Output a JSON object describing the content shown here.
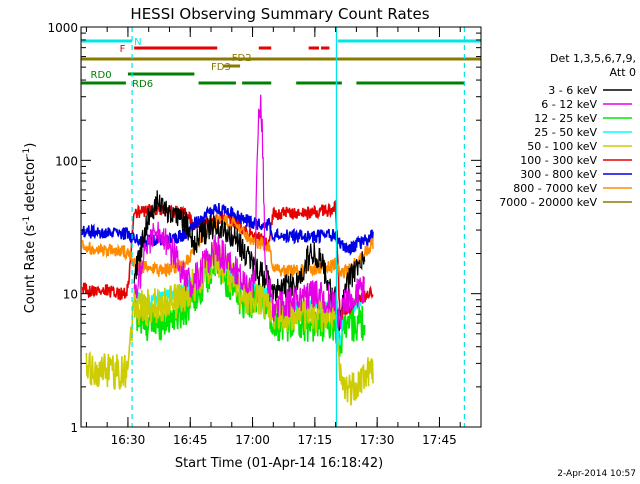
{
  "chart_data": {
    "type": "line",
    "title": "HESSI Observing Summary Count Rates",
    "xlabel": "Start Time (01-Apr-14 16:18:42)",
    "ylabel": "Count Rate (s",
    "ylabel_sup1": "-1",
    "ylabel_mid": " detector",
    "ylabel_sup2": "-1",
    "ylabel_end": ")",
    "yscale": "log",
    "ylim": [
      1,
      1000
    ],
    "xlim_min": [
      978.7,
      1075
    ],
    "x_ticks_min": [
      990,
      1005,
      1020,
      1035,
      1050,
      1065
    ],
    "x_tick_labels": [
      "16:30",
      "16:45",
      "17:00",
      "17:15",
      "17:30",
      "17:45"
    ],
    "y_ticks": [
      1,
      10,
      100,
      1000
    ],
    "y_tick_labels": [
      "1",
      "10",
      "100",
      "1000"
    ],
    "timestamp": "2-Apr-2014 10:57",
    "legend": {
      "heading1": "Det 1,3,5,6,7,9,",
      "heading2": "Att 0",
      "entries": [
        {
          "label": "3 - 6 keV",
          "color": "#000000"
        },
        {
          "label": "6 - 12 keV",
          "color": "#e600e6"
        },
        {
          "label": "12 - 25 keV",
          "color": "#00e600"
        },
        {
          "label": "25 - 50 keV",
          "color": "#00ffff"
        },
        {
          "label": "50 - 100 keV",
          "color": "#cccc00"
        },
        {
          "label": "100 - 300 keV",
          "color": "#e60000"
        },
        {
          "label": "300 - 800 keV",
          "color": "#0000e6"
        },
        {
          "label": "800 - 7000 keV",
          "color": "#ff8c00"
        },
        {
          "label": "7000 - 20000 keV",
          "color": "#8b7a00"
        }
      ]
    },
    "flags": [
      {
        "name": "N",
        "color": "#00e6e6",
        "label_x_min": 991.5,
        "segments": [
          [
            978.7,
            991
          ],
          [
            1040.5,
            1075
          ]
        ]
      },
      {
        "name": "F",
        "color": "#e60000",
        "label_x_min": 988,
        "segments": [
          [
            991.5,
            1011.5
          ],
          [
            1021.5,
            1024.5
          ],
          [
            1033.5,
            1036
          ],
          [
            1036.5,
            1038.5
          ]
        ]
      },
      {
        "name": "FD2",
        "color": "#8b7a00",
        "label_x_min": 1015,
        "segments": [
          [
            978.7,
            1075
          ]
        ]
      },
      {
        "name": "FD3",
        "color": "#8b7a00",
        "label_x_min": 1010,
        "segments": [
          [
            1013,
            1017
          ]
        ]
      },
      {
        "name": "RD0",
        "color": "#008000",
        "label_x_min": 981,
        "segments": [
          [
            990,
            1006
          ]
        ]
      },
      {
        "name": "RD6",
        "color": "#008000",
        "label_x_min": 991,
        "segments": [
          [
            978.7,
            989.5
          ],
          [
            1007,
            1016
          ],
          [
            1017.5,
            1024.5
          ],
          [
            1030.5,
            1041.5
          ],
          [
            1045,
            1071
          ]
        ]
      }
    ],
    "vlines": {
      "solid": [
        978.7,
        1040.2
      ],
      "dashed": [
        991,
        1071
      ],
      "color": "#00e6e6"
    },
    "series": [
      {
        "name": "3 - 6 keV",
        "color": "#000000",
        "noise": 0.1,
        "points": [
          [
            991.5,
            13
          ],
          [
            993,
            20
          ],
          [
            995,
            40
          ],
          [
            997,
            48
          ],
          [
            999,
            44
          ],
          [
            1002,
            40
          ],
          [
            1004,
            33
          ],
          [
            1006,
            24
          ],
          [
            1008,
            28
          ],
          [
            1011,
            33
          ],
          [
            1014,
            30
          ],
          [
            1017,
            23
          ],
          [
            1019,
            18
          ],
          [
            1020.5,
            15
          ],
          [
            1022,
            14
          ],
          [
            1023.5,
            13
          ],
          [
            1025,
            11
          ],
          [
            1027,
            11
          ],
          [
            1029,
            11.5
          ],
          [
            1031,
            12
          ],
          [
            1033,
            18
          ],
          [
            1035,
            20
          ],
          [
            1037,
            16
          ],
          [
            1039,
            10
          ],
          [
            1040,
            9
          ],
          [
            1041,
            6
          ],
          [
            1042,
            10
          ],
          [
            1043,
            12
          ],
          [
            1045,
            16
          ],
          [
            1047,
            18
          ]
        ]
      },
      {
        "name": "6 - 12 keV",
        "color": "#e600e6",
        "noise": 0.12,
        "points": [
          [
            991.5,
            10
          ],
          [
            993,
            14
          ],
          [
            995,
            25
          ],
          [
            997,
            28
          ],
          [
            999,
            24
          ],
          [
            1001,
            20
          ],
          [
            1003,
            15
          ],
          [
            1005,
            12
          ],
          [
            1007,
            14
          ],
          [
            1009,
            18
          ],
          [
            1011,
            22
          ],
          [
            1013,
            19
          ],
          [
            1015,
            16
          ],
          [
            1017,
            13
          ],
          [
            1019,
            11
          ],
          [
            1020.5,
            12
          ],
          [
            1021,
            60
          ],
          [
            1021.5,
            230
          ],
          [
            1022,
            290
          ],
          [
            1022.5,
            120
          ],
          [
            1023,
            20
          ],
          [
            1024,
            11
          ],
          [
            1025,
            8
          ],
          [
            1027,
            8
          ],
          [
            1029,
            8.5
          ],
          [
            1031,
            9
          ],
          [
            1033,
            10
          ],
          [
            1035,
            10
          ],
          [
            1037,
            9.5
          ],
          [
            1039,
            9
          ],
          [
            1040,
            8
          ],
          [
            1041,
            6
          ],
          [
            1042,
            8
          ],
          [
            1043,
            9
          ],
          [
            1045,
            10
          ],
          [
            1047,
            11
          ]
        ]
      }
    ],
    "band_series": [
      {
        "name": "12 - 25 keV",
        "color": "#00e600",
        "points": [
          [
            991.5,
            8
          ],
          [
            993,
            6
          ],
          [
            995,
            6
          ],
          [
            997,
            6
          ],
          [
            999,
            6.5
          ],
          [
            1002,
            7
          ],
          [
            1004,
            8
          ],
          [
            1007,
            11
          ],
          [
            1011,
            17
          ],
          [
            1013,
            14
          ],
          [
            1015,
            11
          ],
          [
            1017,
            9
          ],
          [
            1019,
            9
          ],
          [
            1020,
            9
          ],
          [
            1022,
            9
          ],
          [
            1024,
            8
          ],
          [
            1025,
            6
          ],
          [
            1029,
            6
          ],
          [
            1033,
            6
          ],
          [
            1037,
            6
          ],
          [
            1039,
            6
          ],
          [
            1040,
            6
          ],
          [
            1041,
            4
          ],
          [
            1042,
            6
          ],
          [
            1045,
            6
          ],
          [
            1047,
            6
          ]
        ]
      },
      {
        "name": "25 - 50 keV",
        "color": "#00ffff",
        "points": [
          [
            991.5,
            10
          ],
          [
            993,
            9
          ],
          [
            995,
            9
          ],
          [
            997,
            9
          ],
          [
            999,
            9.5
          ],
          [
            1002,
            10
          ],
          [
            1004,
            11
          ],
          [
            1007,
            14
          ],
          [
            1011,
            20
          ],
          [
            1013,
            17
          ],
          [
            1015,
            14
          ],
          [
            1017,
            12
          ],
          [
            1019,
            11
          ],
          [
            1020,
            11
          ],
          [
            1022,
            10.5
          ],
          [
            1024,
            10
          ],
          [
            1025,
            8
          ],
          [
            1029,
            8
          ],
          [
            1033,
            8
          ],
          [
            1037,
            8
          ],
          [
            1039,
            8
          ],
          [
            1040,
            7.5
          ],
          [
            1041,
            4
          ],
          [
            1042,
            8
          ],
          [
            1045,
            8.5
          ],
          [
            1047,
            9
          ]
        ]
      },
      {
        "name": "50 - 100 keV",
        "color": "#cccc00",
        "points": [
          [
            980,
            2.6
          ],
          [
            982,
            2.6
          ],
          [
            984,
            2.6
          ],
          [
            986,
            2.6
          ],
          [
            988,
            2.6
          ],
          [
            989.5,
            2.6
          ],
          [
            990,
            3.5
          ],
          [
            991.5,
            8
          ],
          [
            993,
            8
          ],
          [
            995,
            8
          ],
          [
            997,
            8
          ],
          [
            999,
            8.5
          ],
          [
            1002,
            9
          ],
          [
            1004,
            10
          ],
          [
            1007,
            13
          ],
          [
            1011,
            19
          ],
          [
            1013,
            16
          ],
          [
            1015,
            13
          ],
          [
            1017,
            10.5
          ],
          [
            1019,
            9.5
          ],
          [
            1020,
            9.5
          ],
          [
            1022,
            9
          ],
          [
            1024,
            8.5
          ],
          [
            1025,
            7
          ],
          [
            1029,
            7
          ],
          [
            1033,
            7
          ],
          [
            1037,
            7
          ],
          [
            1039,
            7
          ],
          [
            1040,
            7
          ],
          [
            1041,
            2.3
          ],
          [
            1042,
            2
          ],
          [
            1044,
            2
          ],
          [
            1046,
            2.3
          ],
          [
            1048,
            2.6
          ],
          [
            1049,
            2.6
          ]
        ]
      },
      {
        "name": "100 - 300 keV",
        "color": "#e60000",
        "points": [
          [
            979,
            11
          ],
          [
            981,
            10.5
          ],
          [
            983,
            10.5
          ],
          [
            985,
            10.5
          ],
          [
            987,
            10
          ],
          [
            989,
            10
          ],
          [
            990,
            11
          ],
          [
            991.5,
            40
          ],
          [
            993,
            41
          ],
          [
            995,
            42
          ],
          [
            997,
            42
          ],
          [
            999,
            42
          ],
          [
            1001,
            41
          ],
          [
            1004,
            40
          ],
          [
            1006,
            33
          ],
          [
            1008,
            33
          ],
          [
            1010,
            35
          ],
          [
            1012,
            37
          ],
          [
            1014,
            37
          ],
          [
            1016,
            34
          ],
          [
            1018,
            30
          ],
          [
            1020,
            27
          ],
          [
            1021.5,
            26
          ],
          [
            1023,
            24
          ],
          [
            1024,
            24
          ],
          [
            1025,
            40
          ],
          [
            1027,
            40
          ],
          [
            1030,
            40
          ],
          [
            1033,
            40
          ],
          [
            1036,
            41
          ],
          [
            1039,
            43
          ],
          [
            1040,
            44
          ],
          [
            1041,
            7
          ],
          [
            1042,
            7
          ],
          [
            1044,
            8
          ],
          [
            1046,
            9
          ],
          [
            1048,
            10
          ],
          [
            1049,
            10
          ]
        ]
      },
      {
        "name": "300 - 800 keV",
        "color": "#0000e6",
        "points": [
          [
            979,
            30
          ],
          [
            981,
            29
          ],
          [
            983,
            28
          ],
          [
            985,
            28
          ],
          [
            987,
            28
          ],
          [
            989,
            28
          ],
          [
            990,
            29
          ],
          [
            991.5,
            26
          ],
          [
            993,
            25
          ],
          [
            995,
            25
          ],
          [
            997,
            25
          ],
          [
            999,
            26
          ],
          [
            1001,
            26
          ],
          [
            1004,
            28
          ],
          [
            1006,
            33
          ],
          [
            1009,
            40
          ],
          [
            1012,
            43
          ],
          [
            1015,
            41
          ],
          [
            1018,
            36
          ],
          [
            1020,
            34
          ],
          [
            1022,
            33
          ],
          [
            1024,
            33
          ],
          [
            1025,
            27
          ],
          [
            1027,
            27
          ],
          [
            1030,
            27
          ],
          [
            1033,
            27
          ],
          [
            1036,
            27
          ],
          [
            1039,
            27.5
          ],
          [
            1040,
            28
          ],
          [
            1041,
            24
          ],
          [
            1043,
            22
          ],
          [
            1045,
            23
          ],
          [
            1047,
            25
          ],
          [
            1049,
            27
          ]
        ]
      },
      {
        "name": "800 - 7000 keV",
        "color": "#ff8c00",
        "points": [
          [
            979,
            24
          ],
          [
            981,
            22
          ],
          [
            983,
            22
          ],
          [
            985,
            21
          ],
          [
            987,
            21
          ],
          [
            989,
            21
          ],
          [
            990,
            20
          ],
          [
            991.5,
            17
          ],
          [
            993,
            16
          ],
          [
            995,
            15.5
          ],
          [
            997,
            15
          ],
          [
            999,
            15
          ],
          [
            1001,
            15.5
          ],
          [
            1004,
            17
          ],
          [
            1006,
            21
          ],
          [
            1009,
            30
          ],
          [
            1012,
            36
          ],
          [
            1015,
            34
          ],
          [
            1018,
            28
          ],
          [
            1020,
            25
          ],
          [
            1022,
            24
          ],
          [
            1024,
            23
          ],
          [
            1025,
            16
          ],
          [
            1027,
            15
          ],
          [
            1030,
            15
          ],
          [
            1033,
            15
          ],
          [
            1036,
            15.5
          ],
          [
            1039,
            16
          ],
          [
            1040,
            17
          ],
          [
            1041,
            14
          ],
          [
            1043,
            15
          ],
          [
            1045,
            17
          ],
          [
            1047,
            20
          ],
          [
            1049,
            24
          ]
        ]
      }
    ]
  }
}
